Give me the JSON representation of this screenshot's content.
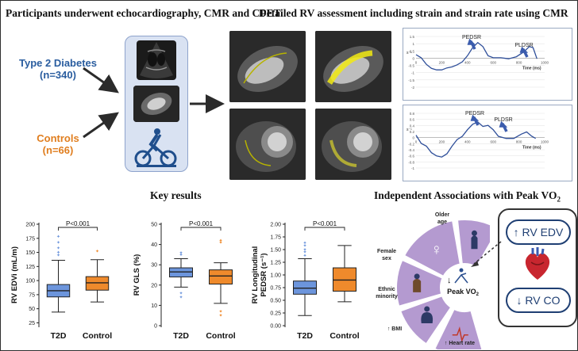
{
  "top": {
    "left_title": "Participants underwent echocardiography, CMR and CPET",
    "right_title": "Detailed RV assessment including strain and strain rate using CMR",
    "groups": [
      {
        "name": "Type 2 Diabetes",
        "n": "(n=340)"
      },
      {
        "name": "Controls",
        "n": "(n=66)"
      }
    ]
  },
  "strain_charts": [
    {
      "peak_labels": [
        "PEDSR",
        "PLDSR"
      ],
      "ylabel": "s⁻¹",
      "xlabel": "Time (ms)",
      "yticks": [
        "1.5",
        "1",
        "0.5",
        "0",
        "-0.5",
        "-1",
        "-1.5",
        "-2"
      ],
      "xticks": [
        "0",
        "200",
        "400",
        "600",
        "800",
        "1000"
      ]
    },
    {
      "peak_labels": [
        "PEDSR",
        "PLDSR"
      ],
      "ylabel": "s⁻¹",
      "xlabel": "Time (ms)",
      "yticks": [
        "0.8",
        "0.6",
        "0.4",
        "0.2",
        "0",
        "-0.2",
        "-0.4",
        "-0.6",
        "-0.8",
        "-1"
      ],
      "xticks": [
        "0",
        "200",
        "400",
        "600",
        "800",
        "1000"
      ]
    }
  ],
  "bottom": {
    "left_title": "Key results",
    "right_title_prefix": "Independent Associations with Peak VO",
    "right_title_sub": "2"
  },
  "chart_data": [
    {
      "type": "box",
      "ylabel": "RV EDVi (mL/m)",
      "categories": [
        "T2D",
        "Control"
      ],
      "ylim": [
        20,
        200
      ],
      "yticks": [
        "200",
        "175",
        "150",
        "125",
        "100",
        "75",
        "50",
        "25"
      ],
      "significance": "P<0.001",
      "series": [
        {
          "name": "T2D",
          "color": "#6c95dc",
          "whisker_low": 44,
          "q1": 71,
          "median": 82,
          "q3": 93,
          "whisker_high": 136,
          "outliers": [
            145,
            150,
            158,
            168,
            178
          ]
        },
        {
          "name": "Control",
          "color": "#ef8a2c",
          "whisker_low": 62,
          "q1": 83,
          "median": 96,
          "q3": 107,
          "whisker_high": 137,
          "outliers": [
            152
          ]
        }
      ]
    },
    {
      "type": "box",
      "ylabel": "RV GLS (%)",
      "categories": [
        "T2D",
        "Control"
      ],
      "ylim": [
        0,
        50
      ],
      "yticks": [
        "50",
        "40",
        "30",
        "20",
        "10",
        "0"
      ],
      "significance": "P<0.001",
      "series": [
        {
          "name": "T2D",
          "color": "#6c95dc",
          "whisker_low": 19,
          "q1": 24,
          "median": 26.5,
          "q3": 28.5,
          "whisker_high": 33,
          "outliers": [
            35,
            36,
            16,
            14
          ]
        },
        {
          "name": "Control",
          "color": "#ef8a2c",
          "whisker_low": 11,
          "q1": 20.5,
          "median": 24.5,
          "q3": 27.5,
          "whisker_high": 31,
          "outliers": [
            41,
            42,
            7,
            5
          ]
        }
      ]
    },
    {
      "type": "box",
      "ylabel": "RV Longitudinal PEDSR (s⁻¹)",
      "categories": [
        "T2D",
        "Control"
      ],
      "ylim": [
        0,
        2
      ],
      "yticks": [
        "2.00",
        "1.75",
        "1.50",
        "1.25",
        "1.00",
        "0.75",
        "0.50",
        "0.25",
        "0.00"
      ],
      "significance": "P<0.001",
      "series": [
        {
          "name": "T2D",
          "color": "#6c95dc",
          "whisker_low": 0.2,
          "q1": 0.62,
          "median": 0.74,
          "q3": 0.88,
          "whisker_high": 1.32,
          "outliers": [
            1.38,
            1.45,
            1.5,
            1.58,
            1.63
          ]
        },
        {
          "name": "Control",
          "color": "#ef8a2c",
          "whisker_low": 0.47,
          "q1": 0.68,
          "median": 0.9,
          "q3": 1.14,
          "whisker_high": 1.58,
          "outliers": []
        }
      ]
    }
  ],
  "associations": {
    "segments": [
      "Older age",
      "Female sex",
      "Ethnic minority",
      "BMI",
      "Heart rate"
    ],
    "bmi_prefix": "↑",
    "hr_prefix": "↑",
    "center": "Peak VO",
    "center_sub": "2",
    "box_items": [
      {
        "arrow": "↑",
        "label": "RV EDV"
      },
      {
        "arrow": "↓",
        "label": "RV CO"
      }
    ]
  },
  "colors": {
    "t2d": "#2a5d9f",
    "control": "#e07e1f",
    "ring": "#b49ad0",
    "panel": "#d9e2f2"
  }
}
